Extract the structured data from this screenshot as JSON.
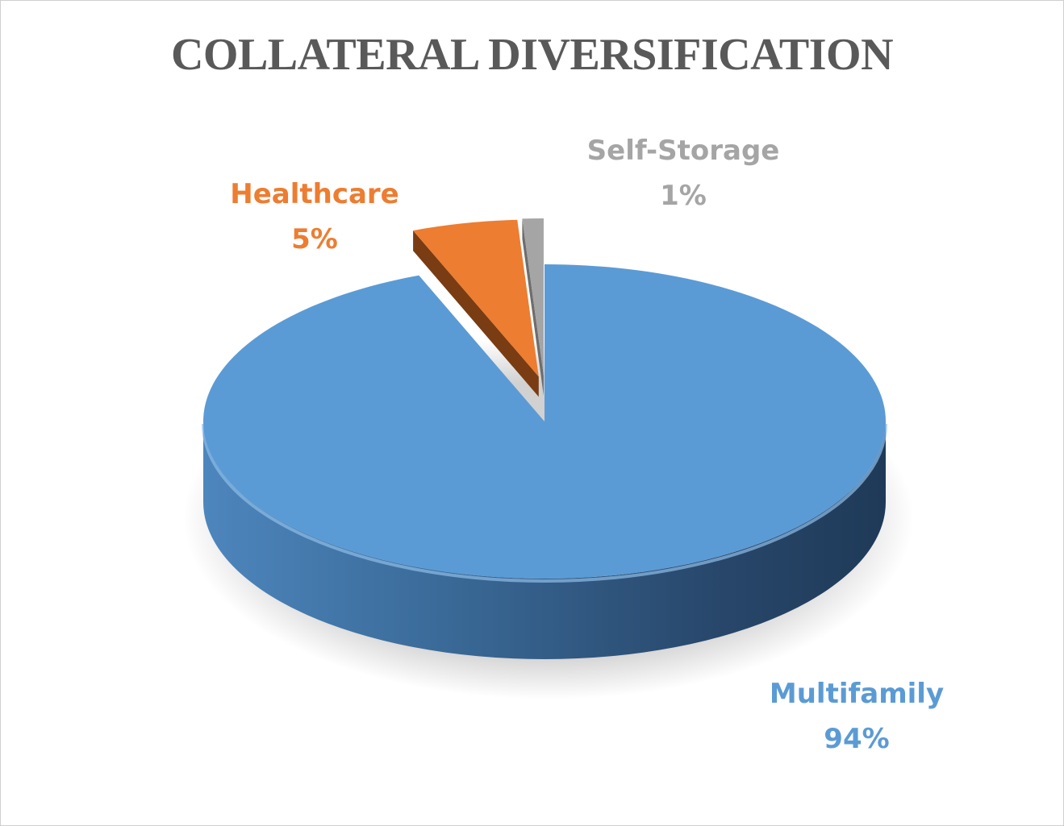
{
  "chart_data": {
    "type": "pie",
    "title": "COLLATERAL DIVERSIFICATION",
    "slices": [
      {
        "label": "Multifamily",
        "value": 94,
        "display": "94%",
        "color": "#5b9bd5",
        "side_color": "#2e4f73",
        "exploded": false
      },
      {
        "label": "Healthcare",
        "value": 5,
        "display": "5%",
        "color": "#ed7d31",
        "side_color": "#7a3c12",
        "exploded": true
      },
      {
        "label": "Self-Storage",
        "value": 1,
        "display": "1%",
        "color": "#a5a5a5",
        "side_color": "#6e6e6e",
        "exploded": true
      }
    ],
    "three_d": true,
    "legend": "none",
    "data_labels": "category-and-percent"
  }
}
